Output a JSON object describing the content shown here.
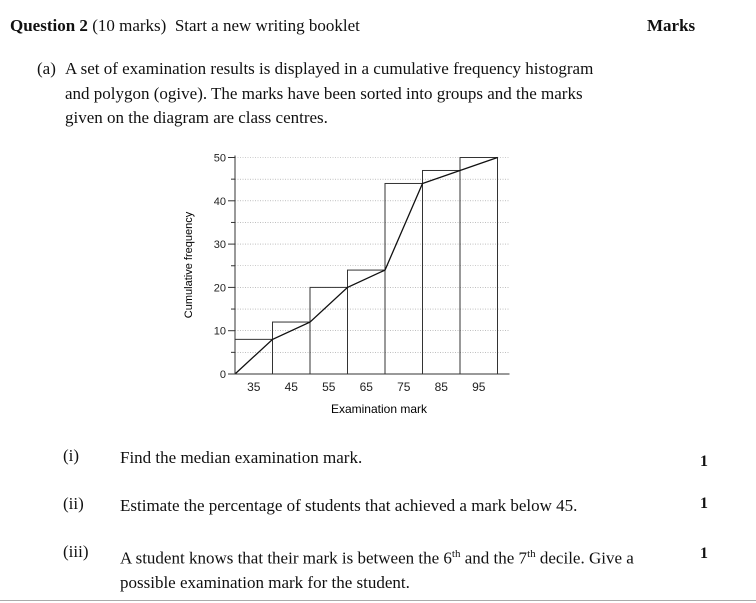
{
  "question": {
    "number_label": "Question 2",
    "marks_note": "(10 marks)",
    "instruction": "Start a new writing booklet",
    "marks_heading": "Marks"
  },
  "part_a": {
    "label": "(a)",
    "line1": "A set of examination results is displayed in a cumulative frequency histogram",
    "line2": "and polygon (ogive). The marks have been sorted into groups and the marks",
    "line3": "given on the diagram are class centres."
  },
  "chart_data": {
    "type": "bar",
    "categories": [
      "35",
      "45",
      "55",
      "65",
      "75",
      "85",
      "95"
    ],
    "values": [
      8,
      12,
      20,
      24,
      44,
      47,
      50
    ],
    "ogive": {
      "x": [
        30,
        40,
        50,
        60,
        70,
        80,
        90,
        100
      ],
      "y": [
        0,
        8,
        12,
        20,
        24,
        44,
        47,
        50
      ]
    },
    "xlabel": "Examination mark",
    "ylabel": "Cumulative frequency",
    "ylim": [
      0,
      50
    ],
    "yticks": [
      0,
      10,
      20,
      30,
      40,
      50
    ],
    "grid": "horizontal dotted"
  },
  "subparts": [
    {
      "label": "(i)",
      "text": "Find the median examination mark.",
      "marks": "1"
    },
    {
      "label": "(ii)",
      "text": "Estimate the percentage of students that achieved a mark below 45.",
      "marks": "1"
    },
    {
      "label": "(iii)",
      "text_before_6": "A student knows that their mark is between the 6",
      "sup1": "th",
      "text_mid": " and the 7",
      "sup2": "th",
      "text_after": " decile. Give a",
      "line2": "possible examination mark for the student.",
      "marks": "1"
    }
  ]
}
